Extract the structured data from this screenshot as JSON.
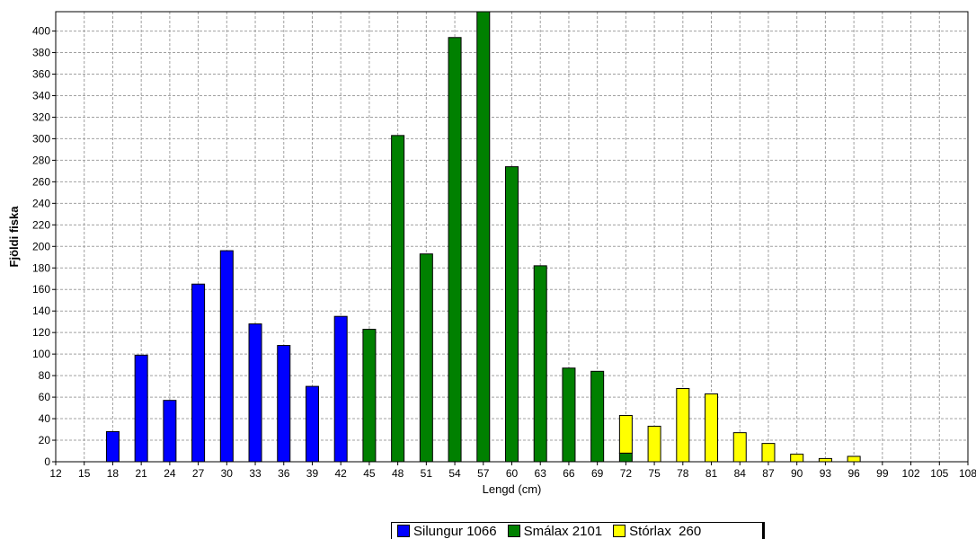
{
  "chart_data": {
    "type": "bar",
    "xlabel": "Lengd (cm)",
    "ylabel": "Fjöldi fiska",
    "ylim": [
      0,
      418
    ],
    "xlim": [
      12,
      108
    ],
    "x_ticks": [
      12,
      15,
      18,
      21,
      24,
      27,
      30,
      33,
      36,
      39,
      42,
      45,
      48,
      51,
      54,
      57,
      60,
      63,
      66,
      69,
      72,
      75,
      78,
      81,
      84,
      87,
      90,
      93,
      96,
      99,
      102,
      105,
      108
    ],
    "y_ticks": [
      0,
      20,
      40,
      60,
      80,
      100,
      120,
      140,
      160,
      180,
      200,
      220,
      240,
      260,
      280,
      300,
      320,
      340,
      360,
      380,
      400
    ],
    "grid": true,
    "stacked": true,
    "legend_position": "bottom",
    "series": [
      {
        "name": "Silungur 1066",
        "color": "#0000ff",
        "points": [
          [
            18,
            28
          ],
          [
            21,
            99
          ],
          [
            24,
            57
          ],
          [
            27,
            165
          ],
          [
            30,
            196
          ],
          [
            33,
            128
          ],
          [
            36,
            108
          ],
          [
            39,
            70
          ],
          [
            42,
            135
          ]
        ]
      },
      {
        "name": "Smálax 2101",
        "color": "#008000",
        "points": [
          [
            45,
            123
          ],
          [
            48,
            303
          ],
          [
            51,
            193
          ],
          [
            54,
            394
          ],
          [
            57,
            420
          ],
          [
            60,
            274
          ],
          [
            63,
            182
          ],
          [
            66,
            87
          ],
          [
            69,
            84
          ],
          [
            72,
            8
          ]
        ]
      },
      {
        "name": "Stórlax  260",
        "color": "#ffff00",
        "points": [
          [
            72,
            35
          ],
          [
            75,
            33
          ],
          [
            78,
            68
          ],
          [
            81,
            63
          ],
          [
            84,
            27
          ],
          [
            87,
            17
          ],
          [
            90,
            7
          ],
          [
            93,
            3
          ],
          [
            96,
            5
          ]
        ]
      }
    ]
  }
}
